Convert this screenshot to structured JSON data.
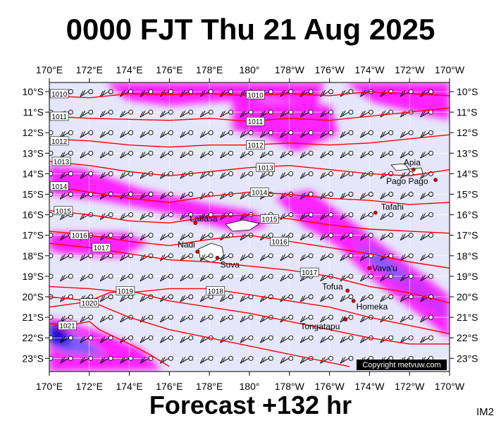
{
  "title": "0000 FJT Thu 21 Aug 2025",
  "footer": "Forecast +132 hr",
  "corner_code": "IM2",
  "copyright": "Copyright metvuw.com",
  "lon_labels": [
    "170°E",
    "172°E",
    "174°E",
    "176°E",
    "178°E",
    "180°",
    "178°W",
    "176°W",
    "174°W",
    "172°W",
    "170°W"
  ],
  "lat_labels": [
    "10°S",
    "11°S",
    "12°S",
    "13°S",
    "14°S",
    "15°S",
    "16°S",
    "17°S",
    "18°S",
    "19°S",
    "20°S",
    "21°S",
    "22°S",
    "23°S"
  ],
  "isobars": [
    {
      "label": "1010",
      "pts": [
        [
          0,
          10.2
        ],
        [
          2,
          10.3
        ],
        [
          4,
          10.1
        ],
        [
          6,
          10.15
        ],
        [
          8,
          10.1
        ],
        [
          10,
          10.2
        ],
        [
          12,
          10.1
        ],
        [
          14,
          10.2
        ],
        [
          16,
          10.0
        ],
        [
          18,
          10.1
        ],
        [
          20,
          10.2
        ]
      ],
      "labels": [
        [
          0.5,
          10.1
        ],
        [
          10.3,
          10.15
        ]
      ]
    },
    {
      "label": "1011",
      "pts": [
        [
          0,
          11.2
        ],
        [
          2,
          11.3
        ],
        [
          4,
          11.35
        ],
        [
          6,
          11.4
        ],
        [
          8,
          11.3
        ],
        [
          10,
          11.45
        ],
        [
          12,
          11.3
        ],
        [
          14,
          11.4
        ],
        [
          16,
          11.2
        ],
        [
          18,
          11.0
        ],
        [
          20,
          10.8
        ]
      ],
      "labels": [
        [
          0.5,
          11.2
        ],
        [
          10.3,
          11.45
        ]
      ]
    },
    {
      "label": "1012",
      "pts": [
        [
          0,
          12.3
        ],
        [
          2,
          12.4
        ],
        [
          4,
          12.6
        ],
        [
          6,
          12.7
        ],
        [
          8,
          12.6
        ],
        [
          10,
          12.6
        ],
        [
          12,
          12.5
        ],
        [
          14,
          12.6
        ],
        [
          16,
          12.5
        ],
        [
          18,
          12.3
        ],
        [
          20,
          12.1
        ]
      ],
      "labels": [
        [
          0.5,
          12.4
        ],
        [
          10.3,
          12.6
        ]
      ]
    },
    {
      "label": "1013",
      "pts": [
        [
          0,
          13.4
        ],
        [
          2,
          13.6
        ],
        [
          4,
          13.9
        ],
        [
          6,
          14.1
        ],
        [
          8,
          13.9
        ],
        [
          10,
          13.7
        ],
        [
          12,
          13.6
        ],
        [
          14,
          13.8
        ],
        [
          16,
          14.0
        ],
        [
          18,
          14.1
        ],
        [
          20,
          13.8
        ]
      ],
      "labels": [
        [
          0.6,
          13.4
        ],
        [
          10.8,
          13.7
        ]
      ]
    },
    {
      "label": "1014",
      "pts": [
        [
          0,
          14.6
        ],
        [
          2,
          14.9
        ],
        [
          4,
          15.2
        ],
        [
          6,
          15.4
        ],
        [
          8,
          15.1
        ],
        [
          10,
          14.9
        ],
        [
          12,
          15.0
        ],
        [
          14,
          15.2
        ],
        [
          16,
          15.3
        ],
        [
          18,
          15.5
        ],
        [
          20,
          15.4
        ]
      ],
      "labels": [
        [
          0.5,
          14.6
        ],
        [
          10.5,
          14.9
        ]
      ]
    },
    {
      "label": "1015",
      "pts": [
        [
          0,
          15.8
        ],
        [
          2,
          16.0
        ],
        [
          4,
          16.3
        ],
        [
          6,
          16.4
        ],
        [
          8,
          16.1
        ],
        [
          10,
          16.0
        ],
        [
          12,
          16.2
        ],
        [
          14,
          16.5
        ],
        [
          16,
          16.7
        ],
        [
          18,
          16.8
        ],
        [
          20,
          16.9
        ]
      ],
      "labels": [
        [
          0.7,
          15.8
        ],
        [
          11.0,
          16.2
        ]
      ]
    },
    {
      "label": "1016",
      "pts": [
        [
          0,
          16.8
        ],
        [
          2,
          17.0
        ],
        [
          4,
          17.3
        ],
        [
          6,
          17.5
        ],
        [
          8,
          17.2
        ],
        [
          10,
          17.0
        ],
        [
          12,
          17.3
        ],
        [
          14,
          17.6
        ],
        [
          16,
          17.9
        ],
        [
          18,
          18.3
        ],
        [
          20,
          18.6
        ]
      ],
      "labels": [
        [
          1.5,
          17.0
        ],
        [
          11.5,
          17.3
        ]
      ]
    },
    {
      "label": "1017",
      "pts": [
        [
          0,
          17.4
        ],
        [
          2,
          17.6
        ],
        [
          4,
          17.9
        ],
        [
          6,
          18.2
        ],
        [
          8,
          18.3
        ],
        [
          10,
          18.5
        ],
        [
          12,
          18.7
        ],
        [
          14,
          19.0
        ],
        [
          16,
          19.5
        ],
        [
          18,
          19.8
        ],
        [
          20,
          20.3
        ]
      ],
      "labels": [
        [
          2.6,
          17.6
        ],
        [
          13.0,
          18.8
        ]
      ]
    },
    {
      "label": "1018",
      "pts": [
        [
          0,
          19.5
        ],
        [
          2,
          19.6
        ],
        [
          4,
          19.8
        ],
        [
          6,
          19.6
        ],
        [
          8,
          19.6
        ],
        [
          10,
          19.9
        ],
        [
          12,
          20.2
        ],
        [
          14,
          20.5
        ],
        [
          16,
          21.0
        ],
        [
          18,
          21.4
        ],
        [
          20,
          21.8
        ]
      ],
      "labels": [
        [
          8.3,
          19.7
        ]
      ]
    },
    {
      "label": "1019",
      "pts": [
        [
          0,
          20.0
        ],
        [
          2,
          20.2
        ],
        [
          3,
          19.8
        ],
        [
          4,
          19.7
        ],
        [
          6,
          20.2
        ],
        [
          8,
          20.5
        ],
        [
          10,
          20.8
        ],
        [
          12,
          21.2
        ],
        [
          14,
          21.6
        ],
        [
          16,
          22.0
        ],
        [
          18,
          22.3
        ],
        [
          20,
          22.3
        ]
      ],
      "labels": [
        [
          3.8,
          19.7
        ]
      ]
    },
    {
      "label": "1020",
      "pts": [
        [
          0,
          20.5
        ],
        [
          1.5,
          20.3
        ],
        [
          2.5,
          20.4
        ],
        [
          4,
          21.0
        ],
        [
          6,
          21.6
        ],
        [
          8,
          22.0
        ],
        [
          10,
          22.4
        ],
        [
          12,
          22.8
        ],
        [
          14,
          23.2
        ],
        [
          15,
          23.4
        ]
      ],
      "labels": [
        [
          2.0,
          20.3
        ]
      ]
    },
    {
      "label": "1021",
      "pts": [
        [
          0,
          21.3
        ],
        [
          1,
          21.4
        ],
        [
          2,
          21.2
        ],
        [
          2.5,
          21.6
        ],
        [
          4,
          22.3
        ],
        [
          5,
          22.8
        ],
        [
          6,
          23.4
        ]
      ],
      "labels": [
        [
          0.9,
          21.4
        ]
      ]
    }
  ],
  "places": [
    {
      "name": "Labasa",
      "lon": 177.3,
      "lat": 16.4,
      "dx": -8,
      "dy": -2
    },
    {
      "name": "Nadi",
      "lon": 177.4,
      "lat": 17.8,
      "dx": -28,
      "dy": -6
    },
    {
      "name": "Suva",
      "lon": 178.4,
      "lat": 18.1,
      "dx": 4,
      "dy": 14
    },
    {
      "name": "Apia",
      "lon": -171.8,
      "lat": 13.8,
      "dx": -14,
      "dy": -6
    },
    {
      "name": "Pago Pago",
      "lon": -170.7,
      "lat": 14.3,
      "dx": -70,
      "dy": 6
    },
    {
      "name": "Tafahi",
      "lon": -173.7,
      "lat": 15.9,
      "dx": 8,
      "dy": -4
    },
    {
      "name": "Vava'u",
      "lon": -174.0,
      "lat": 18.6,
      "dx": 4,
      "dy": 4
    },
    {
      "name": "Tofua",
      "lon": -175.1,
      "lat": 19.7,
      "dx": -36,
      "dy": -2
    },
    {
      "name": "Homeka",
      "lon": -174.8,
      "lat": 20.2,
      "dx": 4,
      "dy": 12
    },
    {
      "name": "Tongatapu",
      "lon": -175.2,
      "lat": 21.1,
      "dx": -64,
      "dy": 14
    }
  ],
  "colors": {
    "ocean": "#e6e6fa",
    "rain_light": "#ff00ff",
    "rain_med": "#cc33ff",
    "rain_heavy": "#6666ff",
    "rain_extreme": "#0000cc",
    "isobar": "#ff0000",
    "land": "#ffffff",
    "place_dot": "#dd0000"
  }
}
